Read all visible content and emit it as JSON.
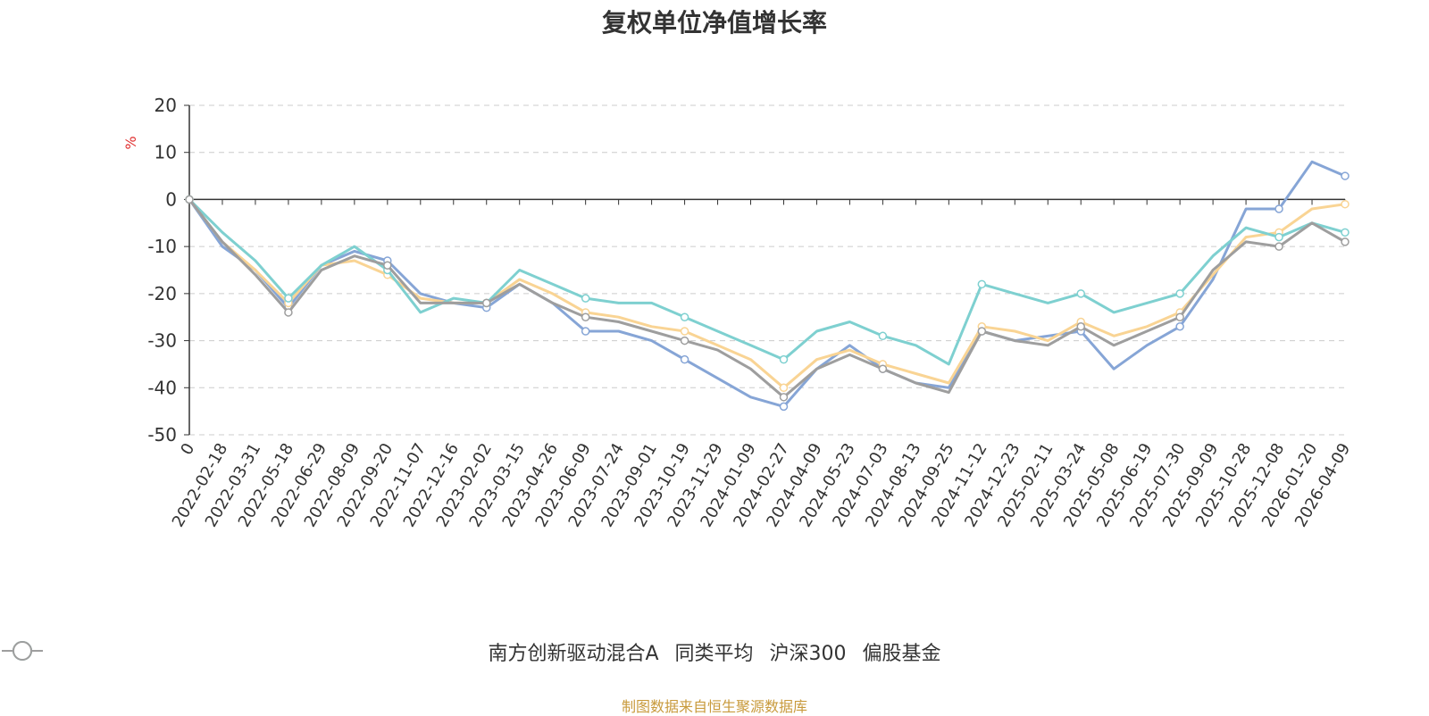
{
  "chart_data": {
    "type": "line",
    "title": "复权单位净值增长率",
    "ylabel": "%",
    "ylim": [
      -50,
      20
    ],
    "yticks": [
      20,
      10,
      0,
      -10,
      -20,
      -30,
      -40,
      -50
    ],
    "x_labels": [
      "0",
      "2022-02-18",
      "2022-03-31",
      "2022-05-18",
      "2022-06-29",
      "2022-08-09",
      "2022-09-20",
      "2022-11-07",
      "2022-12-16",
      "2023-02-02",
      "2023-03-15",
      "2023-04-26",
      "2023-06-09",
      "2023-07-24",
      "2023-09-01",
      "2023-10-19",
      "2023-11-29",
      "2024-01-09",
      "2024-02-27",
      "2024-04-09",
      "2024-05-23",
      "2024-07-03",
      "2024-08-13",
      "2024-09-25",
      "2024-11-12",
      "2024-12-23",
      "2025-02-11",
      "2025-03-24",
      "2025-05-08",
      "2025-06-19",
      "2025-07-30",
      "2025-09-09",
      "2025-10-28",
      "2025-12-08",
      "2026-01-20",
      "2026-04-09"
    ],
    "legend_position": "bottom",
    "grid": true,
    "series": [
      {
        "name": "南方创新驱动混合A",
        "color": "#86a5d6",
        "values": [
          0,
          -10,
          -15,
          -23,
          -14,
          -11,
          -13,
          -20,
          -22,
          -23,
          -18,
          -22,
          -28,
          -28,
          -30,
          -34,
          -38,
          -42,
          -44,
          -36,
          -31,
          -36,
          -39,
          -40,
          -28,
          -30,
          -29,
          -28,
          -36,
          -31,
          -27,
          -17,
          -2,
          -2,
          8,
          5
        ]
      },
      {
        "name": "同类平均",
        "color": "#f9d494",
        "values": [
          0,
          -9,
          -15,
          -22,
          -14,
          -13,
          -16,
          -21,
          -22,
          -22,
          -17,
          -20,
          -24,
          -25,
          -27,
          -28,
          -31,
          -34,
          -40,
          -34,
          -32,
          -35,
          -37,
          -39,
          -27,
          -28,
          -30,
          -26,
          -29,
          -27,
          -24,
          -16,
          -8,
          -7,
          -2,
          -1
        ]
      },
      {
        "name": "沪深300",
        "color": "#7ed0d0",
        "values": [
          0,
          -7,
          -13,
          -21,
          -14,
          -10,
          -15,
          -24,
          -21,
          -22,
          -15,
          -18,
          -21,
          -22,
          -22,
          -25,
          -28,
          -31,
          -34,
          -28,
          -26,
          -29,
          -31,
          -35,
          -18,
          -20,
          -22,
          -20,
          -24,
          -22,
          -20,
          -12,
          -6,
          -8,
          -5,
          -7
        ]
      },
      {
        "name": "偏股基金",
        "color": "#9e9e9e",
        "values": [
          0,
          -9,
          -16,
          -24,
          -15,
          -12,
          -14,
          -22,
          -22,
          -22,
          -18,
          -22,
          -25,
          -26,
          -28,
          -30,
          -32,
          -36,
          -42,
          -36,
          -33,
          -36,
          -39,
          -41,
          -28,
          -30,
          -31,
          -27,
          -31,
          -28,
          -25,
          -15,
          -9,
          -10,
          -5,
          -9
        ]
      }
    ]
  },
  "source_note": "制图数据来自恒生聚源数据库"
}
